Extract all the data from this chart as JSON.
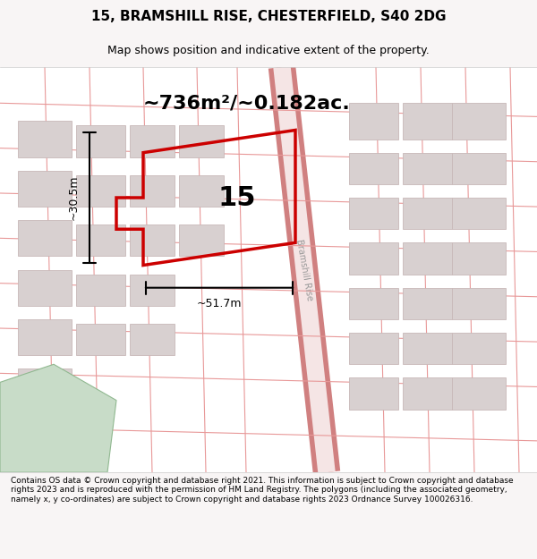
{
  "title": "15, BRAMSHILL RISE, CHESTERFIELD, S40 2DG",
  "subtitle": "Map shows position and indicative extent of the property.",
  "area_text": "~736m²/~0.182ac.",
  "label_15": "15",
  "dim_width": "~51.7m",
  "dim_height": "~30.5m",
  "footer": "Contains OS data © Crown copyright and database right 2021. This information is subject to Crown copyright and database rights 2023 and is reproduced with the permission of HM Land Registry. The polygons (including the associated geometry, namely x, y co-ordinates) are subject to Crown copyright and database rights 2023 Ordnance Survey 100026316.",
  "bg_color": "#f5f0f0",
  "map_bg": "#ffffff",
  "plot_color": "#cc0000",
  "plot_fill": "none",
  "road_color": "#e8a0a0",
  "building_color": "#d8d0d0",
  "building_edge": "#c8b8b8",
  "green_color": "#c8dcc8",
  "road_label": "Bramshill Rise"
}
